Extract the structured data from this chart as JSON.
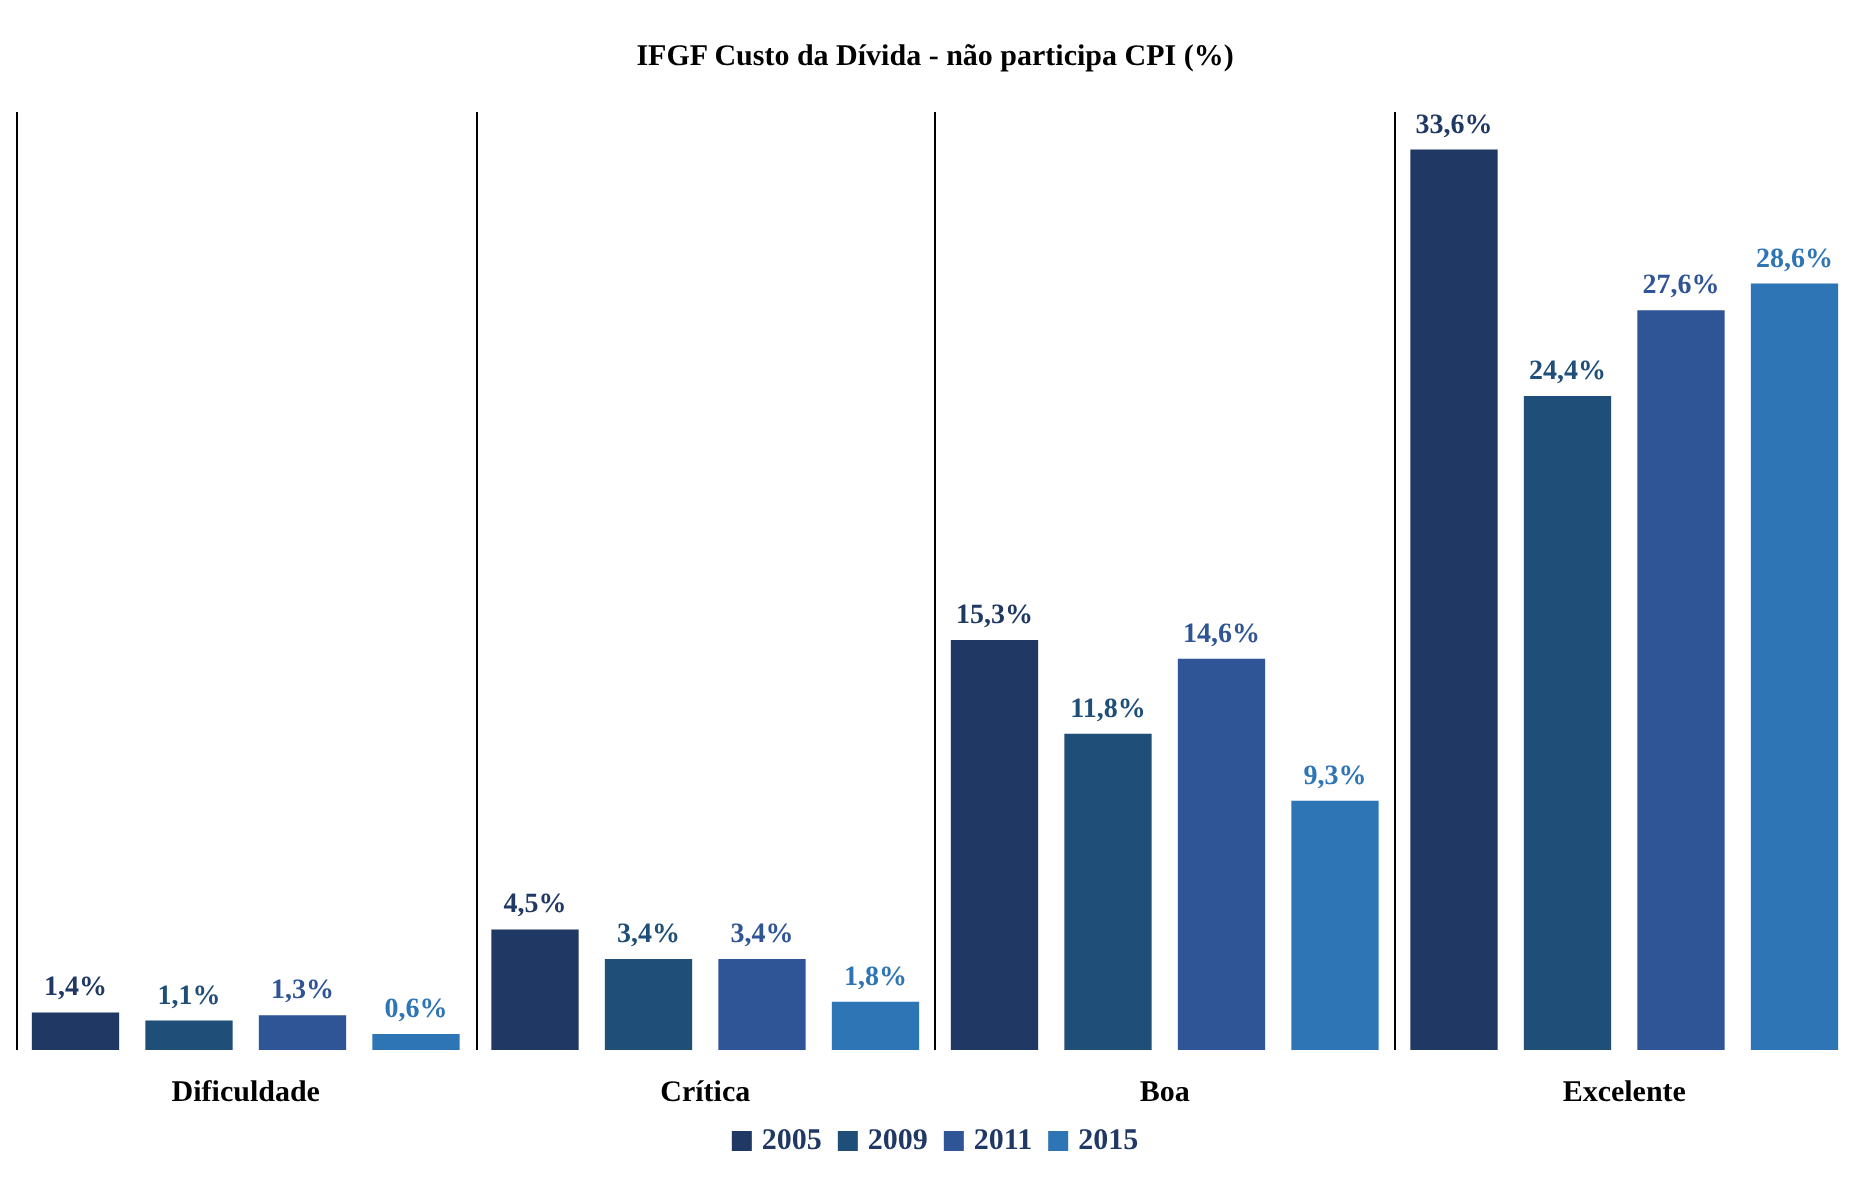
{
  "chart_data": {
    "type": "bar",
    "title": "IFGF Custo da Dívida - não participa CPI (%)",
    "categories": [
      "Dificuldade",
      "Crítica",
      "Boa",
      "Excelente"
    ],
    "series": [
      {
        "name": "2005",
        "color": "#1f3864",
        "values": [
          1.4,
          4.5,
          15.3,
          33.6
        ],
        "value_labels": [
          "1,4%",
          "4,5%",
          "15,3%",
          "33,6%"
        ]
      },
      {
        "name": "2009",
        "color": "#1f4e79",
        "values": [
          1.1,
          3.4,
          11.8,
          24.4
        ],
        "value_labels": [
          "1,1%",
          "3,4%",
          "11,8%",
          "24,4%"
        ]
      },
      {
        "name": "2011",
        "color": "#2f5597",
        "values": [
          1.3,
          3.4,
          14.6,
          27.6
        ],
        "value_labels": [
          "1,3%",
          "3,4%",
          "14,6%",
          "27,6%"
        ]
      },
      {
        "name": "2015",
        "color": "#2e75b6",
        "values": [
          0.6,
          1.8,
          9.3,
          28.6
        ],
        "value_labels": [
          "0,6%",
          "1,8%",
          "9,3%",
          "28,6%"
        ]
      }
    ],
    "grid": "x",
    "legend": "bottom"
  }
}
